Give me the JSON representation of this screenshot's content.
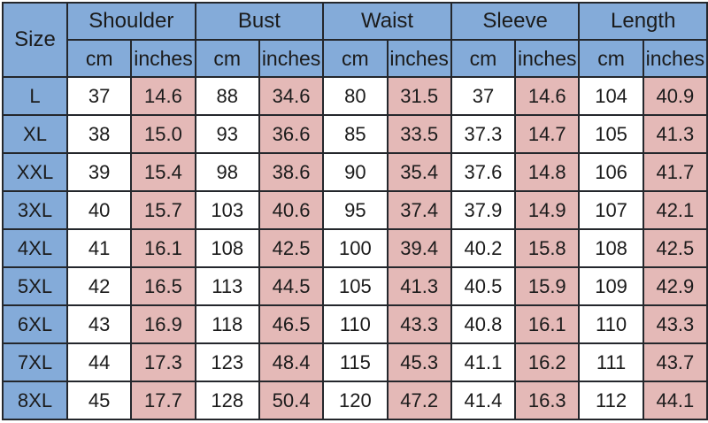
{
  "chart_data": {
    "type": "table",
    "corner_header": "Size",
    "measure_groups": [
      "Shoulder",
      "Bust",
      "Waist",
      "Sleeve",
      "Length"
    ],
    "unit_headers": [
      "cm",
      "inches"
    ],
    "columns": [
      "Size",
      "Shoulder cm",
      "Shoulder inches",
      "Bust cm",
      "Bust inches",
      "Waist cm",
      "Waist inches",
      "Sleeve cm",
      "Sleeve inches",
      "Length cm",
      "Length inches"
    ],
    "rows": [
      {
        "size": "L",
        "values": [
          "37",
          "14.6",
          "88",
          "34.6",
          "80",
          "31.5",
          "37",
          "14.6",
          "104",
          "40.9"
        ]
      },
      {
        "size": "XL",
        "values": [
          "38",
          "15.0",
          "93",
          "36.6",
          "85",
          "33.5",
          "37.3",
          "14.7",
          "105",
          "41.3"
        ]
      },
      {
        "size": "XXL",
        "values": [
          "39",
          "15.4",
          "98",
          "38.6",
          "90",
          "35.4",
          "37.6",
          "14.8",
          "106",
          "41.7"
        ]
      },
      {
        "size": "3XL",
        "values": [
          "40",
          "15.7",
          "103",
          "40.6",
          "95",
          "37.4",
          "37.9",
          "14.9",
          "107",
          "42.1"
        ]
      },
      {
        "size": "4XL",
        "values": [
          "41",
          "16.1",
          "108",
          "42.5",
          "100",
          "39.4",
          "40.2",
          "15.8",
          "108",
          "42.5"
        ]
      },
      {
        "size": "5XL",
        "values": [
          "42",
          "16.5",
          "113",
          "44.5",
          "105",
          "41.3",
          "40.5",
          "15.9",
          "109",
          "42.9"
        ]
      },
      {
        "size": "6XL",
        "values": [
          "43",
          "16.9",
          "118",
          "46.5",
          "110",
          "43.3",
          "40.8",
          "16.1",
          "110",
          "43.3"
        ]
      },
      {
        "size": "7XL",
        "values": [
          "44",
          "17.3",
          "123",
          "48.4",
          "115",
          "45.3",
          "41.1",
          "16.2",
          "111",
          "43.7"
        ]
      },
      {
        "size": "8XL",
        "values": [
          "45",
          "17.7",
          "128",
          "50.4",
          "120",
          "47.2",
          "41.4",
          "16.3",
          "112",
          "44.1"
        ]
      }
    ],
    "layout": {
      "grid": "on",
      "header_rows": 2,
      "size_column_merged_rows": 2
    },
    "colors": {
      "header_blue": "#84abd9",
      "size_column_blue": "#84abd9",
      "cm_cell_white": "#ffffff",
      "inches_cell_pink": "#e4b9b7",
      "border": "#24272c",
      "text": "#1b1b1b"
    }
  }
}
